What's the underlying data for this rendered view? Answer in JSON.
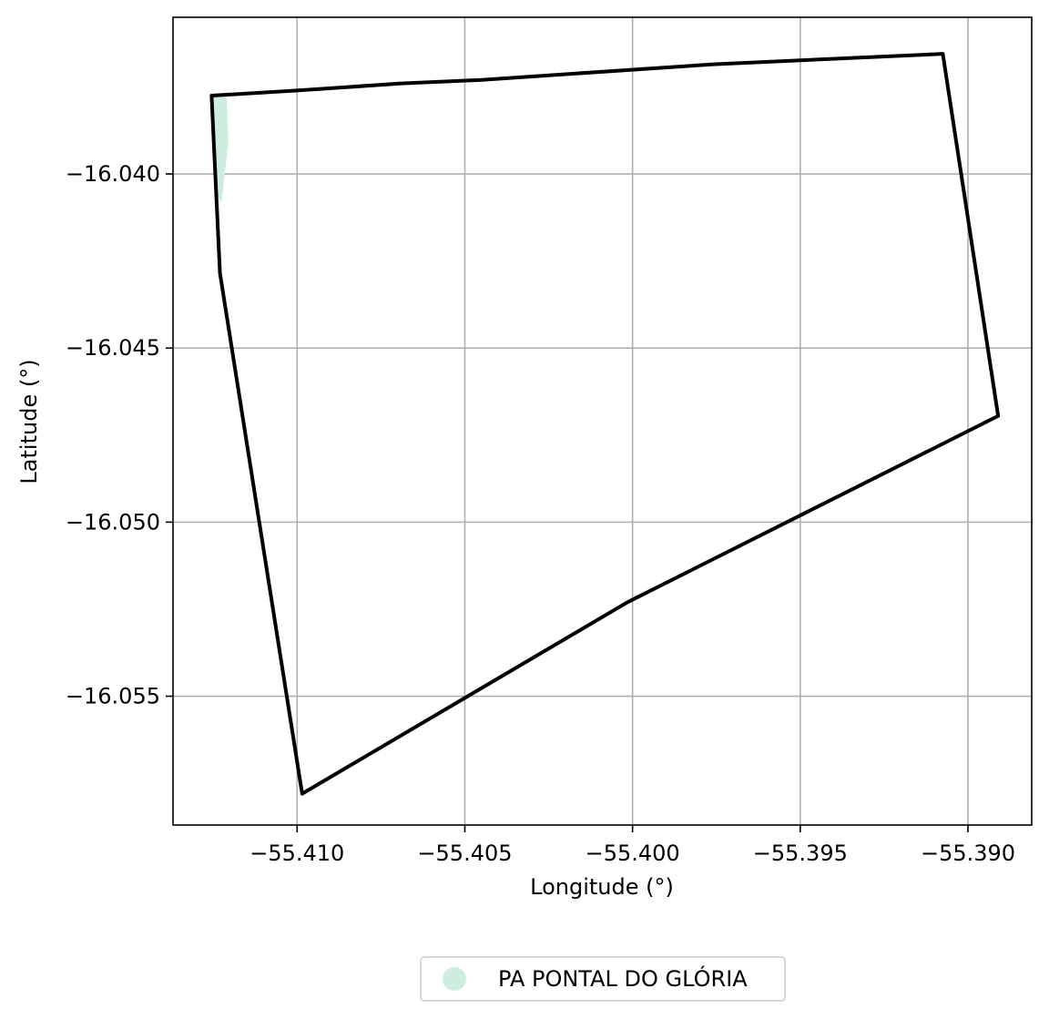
{
  "map": {
    "xlabel": "Longitude (°)",
    "ylabel": "Latitude (°)",
    "xlim": [
      -55.4137,
      -55.3881
    ],
    "ylim": [
      -16.0587,
      -16.0355
    ],
    "x_ticks": [
      -55.41,
      -55.405,
      -55.4,
      -55.395,
      -55.39
    ],
    "x_tick_labels": [
      "−55.410",
      "−55.405",
      "−55.400",
      "−55.395",
      "−55.390"
    ],
    "y_ticks": [
      -16.04,
      -16.045,
      -16.05,
      -16.055
    ],
    "y_tick_labels": [
      "−16.040",
      "−16.045",
      "−16.050",
      "−16.055"
    ],
    "grid": true,
    "grid_color": "#b0b0b0",
    "boundary": {
      "color": "#000000",
      "coords": [
        [
          -55.41255,
          -16.03775
        ],
        [
          -55.40995,
          -16.0376
        ],
        [
          -55.4069,
          -16.0374
        ],
        [
          -55.40455,
          -16.0373
        ],
        [
          -55.3976,
          -16.03685
        ],
        [
          -55.39075,
          -16.03655
        ],
        [
          -55.3891,
          -16.04695
        ],
        [
          -55.40015,
          -16.0523
        ],
        [
          -55.40985,
          -16.0578
        ],
        [
          -55.4123,
          -16.04285
        ],
        [
          -55.41255,
          -16.03775
        ]
      ]
    },
    "settlement": {
      "name": "PA PONTAL DO GLÓRIA",
      "color": "#cdeede",
      "coords": [
        [
          -55.41255,
          -16.03775
        ],
        [
          -55.4121,
          -16.03775
        ],
        [
          -55.41205,
          -16.0391
        ],
        [
          -55.41225,
          -16.0408
        ],
        [
          -55.4124,
          -16.0406
        ],
        [
          -55.41255,
          -16.03775
        ]
      ]
    },
    "legend": {
      "placement": "bottom-center",
      "entries": [
        {
          "label": "PA PONTAL DO GLÓRIA",
          "color": "#cdeede"
        }
      ]
    }
  }
}
